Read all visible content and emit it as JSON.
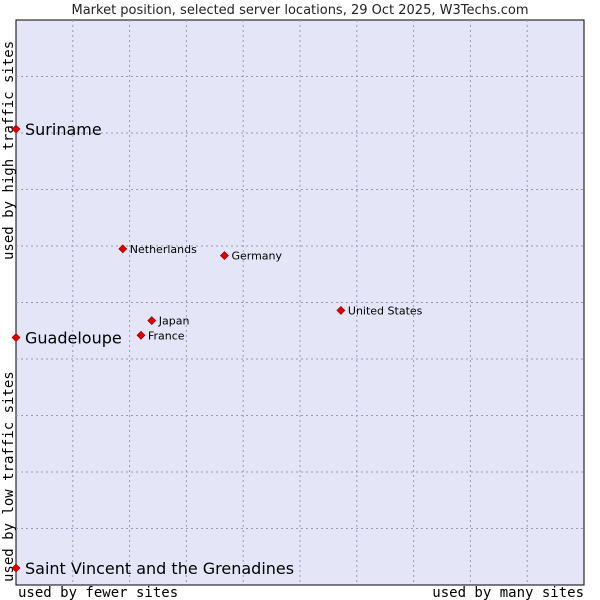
{
  "chart_data": {
    "type": "scatter",
    "title": "Market position, selected server locations, 29 Oct 2025, W3Techs.com",
    "xlabel_low": "used by fewer sites",
    "xlabel_high": "used by many sites",
    "ylabel_low": "used by low traffic sites",
    "ylabel_high": "used by high traffic sites",
    "xlim": [
      0,
      10
    ],
    "ylim": [
      0,
      10
    ],
    "grid": true,
    "point_color": "#e00000",
    "plot_bg": "#e4e6f8",
    "points": [
      {
        "name": "Suriname",
        "x": 0.0,
        "y": 8.07,
        "label_size": "big"
      },
      {
        "name": "Guadeloupe",
        "x": 0.0,
        "y": 4.38,
        "label_size": "big"
      },
      {
        "name": "Saint Vincent and the Grenadines",
        "x": 0.0,
        "y": 0.3,
        "label_size": "big"
      },
      {
        "name": "Netherlands",
        "x": 1.88,
        "y": 5.95,
        "label_size": "small"
      },
      {
        "name": "Germany",
        "x": 3.67,
        "y": 5.83,
        "label_size": "small"
      },
      {
        "name": "United States",
        "x": 5.72,
        "y": 4.86,
        "label_size": "small"
      },
      {
        "name": "Japan",
        "x": 2.39,
        "y": 4.68,
        "label_size": "small"
      },
      {
        "name": "France",
        "x": 2.2,
        "y": 4.42,
        "label_size": "small"
      }
    ]
  }
}
